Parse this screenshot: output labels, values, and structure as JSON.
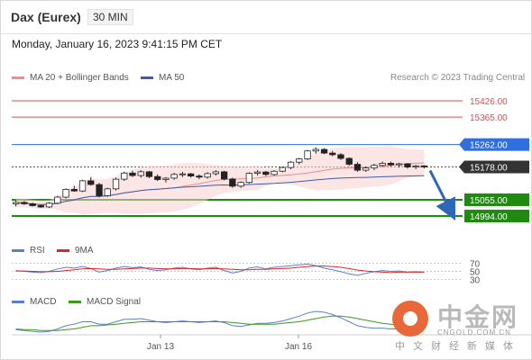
{
  "header": {
    "symbol": "Dax (Eurex)",
    "timeframe": "30 MIN"
  },
  "timestamp": "Monday, January 16, 2023 9:41:15 PM CET",
  "credit": "Research © 2023 Trading Central",
  "legends": {
    "main": [
      {
        "label": "MA 20 + Bollinger Bands",
        "color": "#f08c8c"
      },
      {
        "label": "MA 50",
        "color": "#3b5fa5"
      }
    ],
    "rsi": [
      {
        "label": "RSI",
        "color": "#5b7fcf"
      },
      {
        "label": "9MA",
        "color": "#d62a2a"
      }
    ],
    "macd": [
      {
        "label": "MACD",
        "color": "#5b7fcf"
      },
      {
        "label": "MACD Signal",
        "color": "#3a9a1a"
      }
    ]
  },
  "watermark": {
    "cn": "中金网",
    "en": "CNGOLD.COM.CN",
    "sub": "中文财经新媒体"
  },
  "chart_data": [
    {
      "type": "candlestick",
      "x_ticks": [
        "Jan 13",
        "Jan 16"
      ],
      "ylim": [
        14930,
        15470
      ],
      "levels": [
        {
          "value": "15426.00",
          "kind": "resistance",
          "color": "#e24b4b"
        },
        {
          "value": "15365.00",
          "kind": "resistance",
          "color": "#e24b4b"
        },
        {
          "value": "15262.00",
          "kind": "pivot",
          "color": "#2f6fe0"
        },
        {
          "value": "15178.00",
          "kind": "last",
          "color": "#333333"
        },
        {
          "value": "15055.00",
          "kind": "support",
          "color": "#1f8a0f"
        },
        {
          "value": "14994.00",
          "kind": "support",
          "color": "#1f8a0f"
        }
      ],
      "ohlc": [
        [
          15040,
          15052,
          15030,
          15045
        ],
        [
          15045,
          15050,
          15036,
          15040
        ],
        [
          15040,
          15044,
          15030,
          15033
        ],
        [
          15033,
          15038,
          15025,
          15028
        ],
        [
          15028,
          15046,
          15024,
          15042
        ],
        [
          15042,
          15070,
          15038,
          15065
        ],
        [
          15065,
          15098,
          15060,
          15094
        ],
        [
          15094,
          15108,
          15085,
          15088
        ],
        [
          15088,
          15130,
          15084,
          15126
        ],
        [
          15126,
          15140,
          15108,
          15112
        ],
        [
          15112,
          15118,
          15064,
          15070
        ],
        [
          15070,
          15100,
          15066,
          15096
        ],
        [
          15096,
          15138,
          15090,
          15132
        ],
        [
          15132,
          15160,
          15126,
          15155
        ],
        [
          15155,
          15164,
          15140,
          15146
        ],
        [
          15146,
          15166,
          15138,
          15160
        ],
        [
          15160,
          15163,
          15136,
          15142
        ],
        [
          15142,
          15150,
          15125,
          15131
        ],
        [
          15131,
          15140,
          15120,
          15136
        ],
        [
          15136,
          15156,
          15130,
          15150
        ],
        [
          15150,
          15160,
          15140,
          15152
        ],
        [
          15152,
          15156,
          15138,
          15144
        ],
        [
          15144,
          15150,
          15132,
          15140
        ],
        [
          15140,
          15158,
          15134,
          15153
        ],
        [
          15153,
          15166,
          15146,
          15160
        ],
        [
          15160,
          15164,
          15128,
          15133
        ],
        [
          15133,
          15138,
          15100,
          15106
        ],
        [
          15106,
          15124,
          15100,
          15120
        ],
        [
          15120,
          15158,
          15116,
          15154
        ],
        [
          15154,
          15166,
          15146,
          15159
        ],
        [
          15159,
          15163,
          15144,
          15150
        ],
        [
          15150,
          15166,
          15146,
          15162
        ],
        [
          15162,
          15180,
          15158,
          15176
        ],
        [
          15176,
          15200,
          15170,
          15196
        ],
        [
          15196,
          15212,
          15188,
          15208
        ],
        [
          15208,
          15242,
          15204,
          15238
        ],
        [
          15238,
          15252,
          15228,
          15244
        ],
        [
          15244,
          15248,
          15226,
          15230
        ],
        [
          15230,
          15238,
          15218,
          15224
        ],
        [
          15224,
          15230,
          15204,
          15210
        ],
        [
          15210,
          15214,
          15182,
          15188
        ],
        [
          15188,
          15196,
          15160,
          15166
        ],
        [
          15166,
          15180,
          15160,
          15174
        ],
        [
          15174,
          15190,
          15166,
          15184
        ],
        [
          15184,
          15198,
          15178,
          15192
        ],
        [
          15192,
          15198,
          15180,
          15186
        ],
        [
          15186,
          15194,
          15176,
          15190
        ],
        [
          15190,
          15192,
          15172,
          15178
        ],
        [
          15178,
          15186,
          15170,
          15182
        ],
        [
          15182,
          15184,
          15172,
          15178
        ]
      ]
    },
    {
      "type": "line",
      "title": "RSI",
      "ylim": [
        20,
        80
      ],
      "y_ticks": [
        70,
        50,
        30
      ],
      "series": [
        {
          "name": "RSI",
          "values": [
            52,
            50,
            48,
            47,
            50,
            56,
            60,
            58,
            62,
            57,
            48,
            52,
            58,
            62,
            59,
            61,
            55,
            52,
            54,
            58,
            60,
            56,
            54,
            58,
            60,
            52,
            46,
            50,
            58,
            61,
            56,
            60,
            62,
            64,
            66,
            68,
            64,
            58,
            54,
            49,
            44,
            40,
            45,
            49,
            52,
            50,
            51,
            48,
            49,
            48
          ]
        },
        {
          "name": "9MA",
          "values": [
            51,
            51,
            50,
            49,
            49,
            50,
            52,
            54,
            56,
            57,
            56,
            55,
            55,
            56,
            57,
            58,
            58,
            57,
            56,
            56,
            57,
            57,
            56,
            56,
            57,
            56,
            55,
            54,
            54,
            55,
            55,
            56,
            57,
            58,
            60,
            62,
            63,
            63,
            62,
            60,
            57,
            53,
            51,
            49,
            48,
            47,
            48,
            48,
            48,
            48
          ]
        }
      ]
    },
    {
      "type": "line",
      "title": "MACD",
      "series": [
        {
          "name": "MACD",
          "values": [
            -2,
            -3,
            -4,
            -5,
            -4,
            -1,
            3,
            5,
            8,
            8,
            5,
            5,
            8,
            11,
            11,
            12,
            10,
            8,
            7,
            8,
            9,
            8,
            7,
            8,
            9,
            7,
            3,
            2,
            4,
            6,
            6,
            7,
            9,
            12,
            15,
            19,
            21,
            20,
            17,
            13,
            8,
            3,
            1,
            0,
            0,
            -1,
            -1,
            -2,
            -2,
            -2
          ]
        },
        {
          "name": "MACD Signal",
          "values": [
            -1,
            -2,
            -2,
            -3,
            -3,
            -3,
            -2,
            -1,
            1,
            3,
            3,
            4,
            5,
            6,
            7,
            8,
            8,
            8,
            8,
            8,
            8,
            8,
            8,
            8,
            8,
            8,
            7,
            6,
            5,
            5,
            5,
            5,
            6,
            7,
            8,
            10,
            12,
            14,
            15,
            15,
            14,
            12,
            10,
            8,
            6,
            5,
            4,
            3,
            2,
            1
          ]
        }
      ]
    }
  ]
}
